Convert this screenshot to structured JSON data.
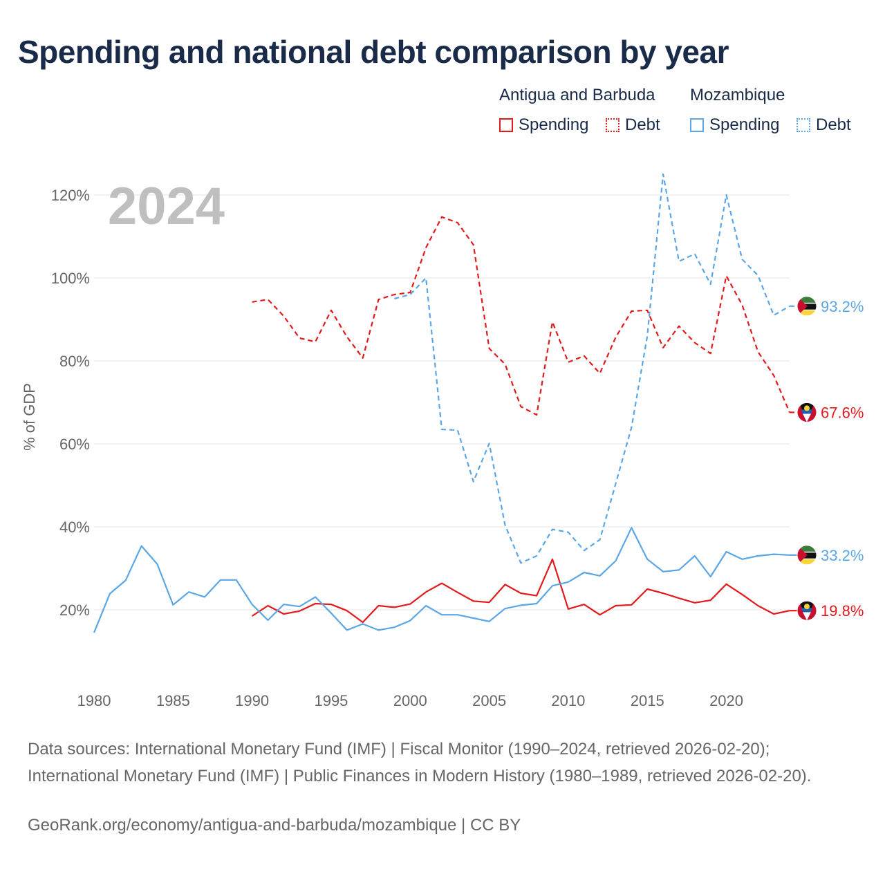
{
  "title": "Spending and national debt comparison by year",
  "legend": {
    "groups": [
      {
        "country": "Antigua and Barbuda",
        "spending_label": "Spending",
        "debt_label": "Debt"
      },
      {
        "country": "Mozambique",
        "spending_label": "Spending",
        "debt_label": "Debt"
      }
    ]
  },
  "colors": {
    "antigua": "#e31a1c",
    "mozambique": "#5aa6e6",
    "grid": "#e6e6e6",
    "axis_text": "#666666",
    "year_label": "#bfbfbf"
  },
  "chart_data": {
    "type": "line",
    "year_label": "2024",
    "ylabel": "% of GDP",
    "xlim": [
      1980,
      2024
    ],
    "ylim": [
      7,
      127
    ],
    "y_ticks": [
      20,
      40,
      60,
      80,
      100,
      120
    ],
    "y_tick_labels": [
      "20%",
      "40%",
      "60%",
      "80%",
      "100%",
      "120%"
    ],
    "x_ticks": [
      1980,
      1985,
      1990,
      1995,
      2000,
      2005,
      2010,
      2015,
      2020
    ],
    "x_tick_labels": [
      "1980",
      "1985",
      "1990",
      "1995",
      "2000",
      "2005",
      "2010",
      "2015",
      "2020"
    ],
    "series": [
      {
        "name": "Antigua and Barbuda Spending",
        "country": "antigua",
        "style": "solid",
        "end_label": "19.8%",
        "x": [
          1990,
          1991,
          1992,
          1993,
          1994,
          1995,
          1996,
          1997,
          1998,
          1999,
          2000,
          2001,
          2002,
          2003,
          2004,
          2005,
          2006,
          2007,
          2008,
          2009,
          2010,
          2011,
          2012,
          2013,
          2014,
          2015,
          2016,
          2017,
          2018,
          2019,
          2020,
          2021,
          2022,
          2023,
          2024
        ],
        "y": [
          18.5,
          21,
          19,
          19.7,
          21.5,
          21.3,
          19.8,
          17,
          21,
          20.6,
          21.4,
          24.3,
          26.4,
          24.2,
          22.1,
          21.8,
          26.1,
          24,
          23.4,
          32.2,
          20.2,
          21.3,
          18.8,
          21,
          21.2,
          25,
          24,
          22.8,
          21.7,
          22.3,
          26.2,
          23.7,
          21,
          19,
          19.8
        ]
      },
      {
        "name": "Antigua and Barbuda Debt",
        "country": "antigua",
        "style": "dashed",
        "end_label": "67.6%",
        "x": [
          1990,
          1991,
          1992,
          1993,
          1994,
          1995,
          1996,
          1997,
          1998,
          1999,
          2000,
          2001,
          2002,
          2003,
          2004,
          2005,
          2006,
          2007,
          2008,
          2009,
          2010,
          2011,
          2012,
          2013,
          2014,
          2015,
          2016,
          2017,
          2018,
          2019,
          2020,
          2021,
          2022,
          2023,
          2024
        ],
        "y": [
          94.2,
          94.8,
          90.8,
          85.5,
          84.6,
          92.2,
          85.8,
          80.7,
          94.8,
          96,
          96.5,
          107.3,
          114.7,
          113.3,
          108,
          83,
          79.2,
          69,
          67,
          89.4,
          79.7,
          81.2,
          77,
          85.7,
          92,
          92.2,
          83.2,
          88.4,
          84.4,
          81.8,
          100.5,
          93.5,
          82.2,
          76.5,
          67.6
        ]
      },
      {
        "name": "Mozambique Spending",
        "country": "mozambique",
        "style": "solid",
        "end_label": "33.2%",
        "x": [
          1980,
          1981,
          1982,
          1983,
          1984,
          1985,
          1986,
          1987,
          1988,
          1989,
          1990,
          1991,
          1992,
          1993,
          1994,
          1995,
          1996,
          1997,
          1998,
          1999,
          2000,
          2001,
          2002,
          2003,
          2004,
          2005,
          2006,
          2007,
          2008,
          2009,
          2010,
          2011,
          2012,
          2013,
          2014,
          2015,
          2016,
          2017,
          2018,
          2019,
          2020,
          2021,
          2022,
          2023,
          2024
        ],
        "y": [
          14.5,
          23.9,
          27.1,
          35.4,
          31,
          21.2,
          24.3,
          23.1,
          27.2,
          27.2,
          21.3,
          17.5,
          21.3,
          20.8,
          23.1,
          19.2,
          15.1,
          16.6,
          15.1,
          15.8,
          17.4,
          21,
          18.8,
          18.8,
          18,
          17.2,
          20.3,
          21.1,
          21.5,
          25.8,
          26.7,
          29,
          28.2,
          31.8,
          39.8,
          32.2,
          29.2,
          29.6,
          33,
          28,
          34,
          32.2,
          33,
          33.4,
          33.2
        ]
      },
      {
        "name": "Mozambique Debt",
        "country": "mozambique",
        "style": "dashed",
        "end_label": "93.2%",
        "x": [
          1999,
          2000,
          2001,
          2002,
          2003,
          2004,
          2005,
          2006,
          2007,
          2008,
          2009,
          2010,
          2011,
          2012,
          2013,
          2014,
          2015,
          2016,
          2017,
          2018,
          2019,
          2020,
          2021,
          2022,
          2023,
          2024
        ],
        "y": [
          95,
          96,
          100,
          63.5,
          63.3,
          50.9,
          60.1,
          40.4,
          31.3,
          33,
          39.4,
          38.7,
          34.3,
          36.9,
          50.4,
          64,
          86,
          125,
          104,
          105.8,
          98.5,
          120,
          104.5,
          100.6,
          91,
          93.2
        ]
      }
    ]
  },
  "footer": {
    "sources": "Data sources: International Monetary Fund (IMF) | Fiscal Monitor (1990–2024, retrieved 2026-02-20); International Monetary Fund (IMF) | Public Finances in Modern History (1980–1989, retrieved 2026-02-20).",
    "credit": "GeoRank.org/economy/antigua-and-barbuda/mozambique | CC BY"
  }
}
